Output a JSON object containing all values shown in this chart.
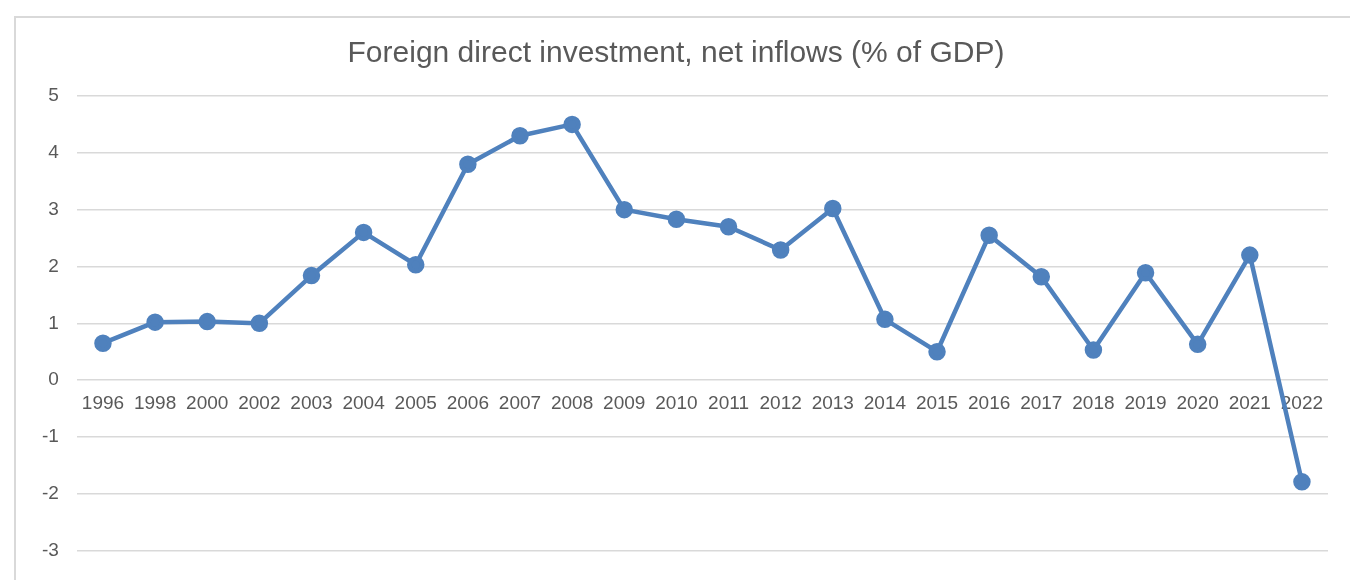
{
  "chart_data": {
    "type": "line",
    "title": "Foreign direct investment, net inflows (% of GDP)",
    "categories": [
      "1996",
      "1998",
      "2000",
      "2002",
      "2003",
      "2004",
      "2005",
      "2006",
      "2007",
      "2008",
      "2009",
      "2010",
      "2011",
      "2012",
      "2013",
      "2014",
      "2015",
      "2016",
      "2017",
      "2018",
      "2019",
      "2020",
      "2021",
      "2022"
    ],
    "series": [
      {
        "color": "#4f81bd",
        "values": [
          0.65,
          1.02,
          1.03,
          1.0,
          1.84,
          2.6,
          2.03,
          3.8,
          4.3,
          4.5,
          3.0,
          2.83,
          2.7,
          2.29,
          3.02,
          1.07,
          0.5,
          2.55,
          1.82,
          0.53,
          1.89,
          0.63,
          2.2,
          -1.79
        ]
      }
    ],
    "ylim": [
      -3,
      5
    ],
    "yticks": [
      -3,
      -2,
      -1,
      0,
      1,
      2,
      3,
      4,
      5
    ],
    "grid": "y",
    "legend": false,
    "marker": "circle",
    "line_style": "solid"
  }
}
